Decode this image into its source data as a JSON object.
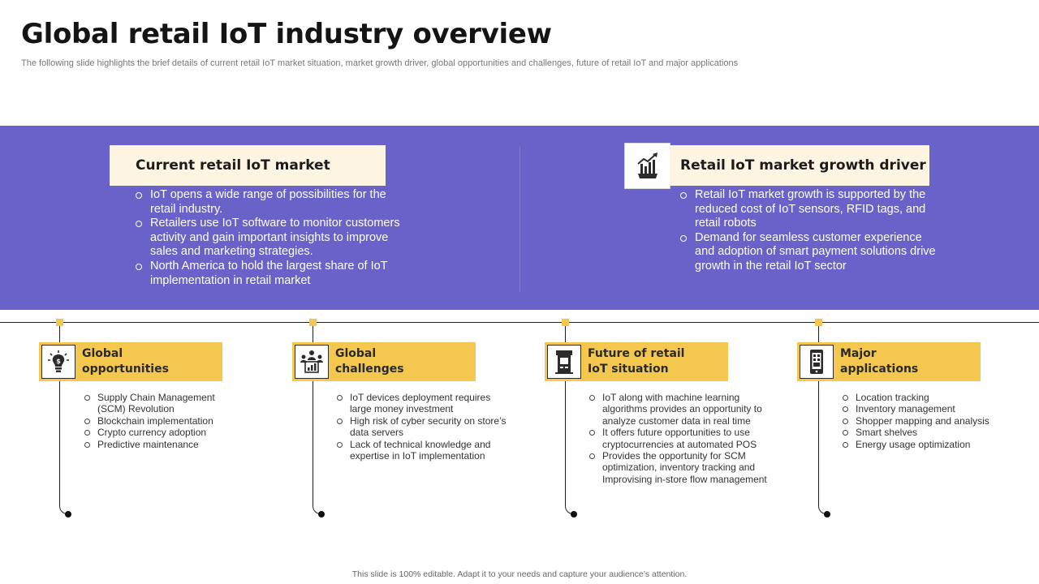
{
  "header": {
    "title": "Global retail IoT industry overview",
    "subtitle": "The following slide highlights the brief details of current retail IoT market situation, market growth driver, global opportunities and challenges, future of retail IoT and major applications"
  },
  "band": {
    "color": "#6962c9",
    "left_panel": {
      "heading": "Current retail IoT market",
      "bullets": [
        "IoT opens a wide range of possibilities for the retail industry.",
        "Retailers use IoT software to monitor customers activity and gain important insights to improve sales and marketing strategies.",
        "North America to hold the largest share of IoT implementation in retail market"
      ]
    },
    "right_panel": {
      "heading": "Retail IoT market growth driver",
      "icon": "growth-chart-gear-icon",
      "bullets": [
        "Retail IoT market growth is supported by the reduced cost of IoT sensors, RFID tags, and retail robots",
        "Demand for seamless customer experience and adoption of smart payment solutions drive growth in the retail IoT sector"
      ]
    }
  },
  "cards": [
    {
      "title_line1": "Global",
      "title_line2": "opportunities",
      "icon": "lightbulb-dollar-icon",
      "bullets": [
        "Supply Chain Management (SCM) Revolution",
        "Blockchain implementation",
        "Crypto currency adoption",
        "Predictive maintenance"
      ]
    },
    {
      "title_line1": "Global",
      "title_line2": "challenges",
      "icon": "team-chart-icon",
      "bullets": [
        "IoT devices deployment requires large money investment",
        "High risk of cyber security on store’s data servers",
        "Lack of technical knowledge and expertise in IoT implementation"
      ]
    },
    {
      "title_line1": "Future of retail",
      "title_line2": "IoT situation",
      "icon": "kiosk-icon",
      "bullets": [
        "IoT along with machine learning algorithms provides an opportunity to analyze customer data in real time",
        "It offers future opportunities to use cryptocurrencies at automated POS",
        "Provides the opportunity for SCM optimization, inventory tracking and Improvising in-store flow management"
      ]
    },
    {
      "title_line1": "Major",
      "title_line2": "applications",
      "icon": "mobile-app-icon",
      "bullets": [
        "Location tracking",
        "Inventory management",
        "Shopper mapping and analysis",
        "Smart shelves",
        "Energy usage optimization"
      ]
    }
  ],
  "colors": {
    "accent_yellow": "#f4c84f",
    "panel_cream": "#fdf4e1"
  },
  "footer": "This slide is 100% editable. Adapt it to your needs and capture your audience’s attention."
}
